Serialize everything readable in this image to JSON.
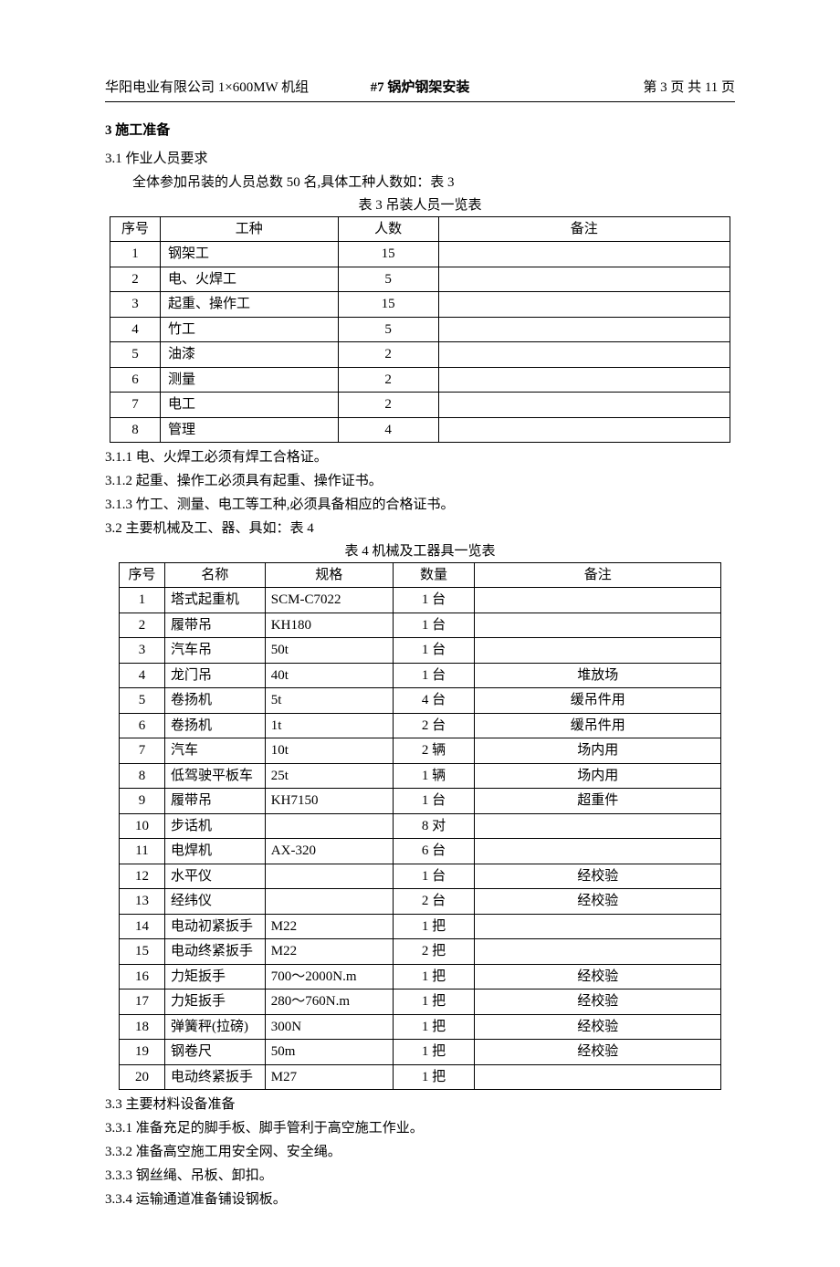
{
  "header": {
    "left": "华阳电业有限公司 1×600MW 机组",
    "center": "#7 锅炉钢架安装",
    "right": "第 3 页 共 11 页"
  },
  "section3": {
    "title": "3 施工准备",
    "p3_1": "3.1 作业人员要求",
    "p3_1_body": "全体参加吊装的人员总数 50 名,具体工种人数如：表 3",
    "table3_caption": "表 3 吊装人员一览表",
    "table3_headers": {
      "seq": "序号",
      "type": "工种",
      "num": "人数",
      "note": "备注"
    },
    "table3_rows": [
      {
        "seq": "1",
        "type": "钢架工",
        "num": "15",
        "note": ""
      },
      {
        "seq": "2",
        "type": "电、火焊工",
        "num": "5",
        "note": ""
      },
      {
        "seq": "3",
        "type": "起重、操作工",
        "num": "15",
        "note": ""
      },
      {
        "seq": "4",
        "type": "竹工",
        "num": "5",
        "note": ""
      },
      {
        "seq": "5",
        "type": "油漆",
        "num": "2",
        "note": ""
      },
      {
        "seq": "6",
        "type": "测量",
        "num": "2",
        "note": ""
      },
      {
        "seq": "7",
        "type": "电工",
        "num": "2",
        "note": ""
      },
      {
        "seq": "8",
        "type": "管理",
        "num": "4",
        "note": ""
      }
    ],
    "p3_1_1": "3.1.1 电、火焊工必须有焊工合格证。",
    "p3_1_2": "3.1.2 起重、操作工必须具有起重、操作证书。",
    "p3_1_3": "3.1.3 竹工、测量、电工等工种,必须具备相应的合格证书。",
    "p3_2": "3.2 主要机械及工、器、具如：表 4",
    "table4_caption": "表 4 机械及工器具一览表",
    "table4_headers": {
      "seq": "序号",
      "name": "名称",
      "spec": "规格",
      "qty": "数量",
      "note": "备注"
    },
    "table4_rows": [
      {
        "seq": "1",
        "name": "塔式起重机",
        "spec": "SCM-C7022",
        "qty": "1 台",
        "note": ""
      },
      {
        "seq": "2",
        "name": "履带吊",
        "spec": "KH180",
        "qty": "1 台",
        "note": ""
      },
      {
        "seq": "3",
        "name": "汽车吊",
        "spec": "50t",
        "qty": "1 台",
        "note": ""
      },
      {
        "seq": "4",
        "name": "龙门吊",
        "spec": "40t",
        "qty": "1 台",
        "note": "堆放场"
      },
      {
        "seq": "5",
        "name": "卷扬机",
        "spec": "5t",
        "qty": "4 台",
        "note": "缓吊件用"
      },
      {
        "seq": "6",
        "name": "卷扬机",
        "spec": "1t",
        "qty": "2 台",
        "note": "缓吊件用"
      },
      {
        "seq": "7",
        "name": "汽车",
        "spec": "10t",
        "qty": "2 辆",
        "note": "场内用"
      },
      {
        "seq": "8",
        "name": "低驾驶平板车",
        "spec": "25t",
        "qty": "1 辆",
        "note": "场内用"
      },
      {
        "seq": "9",
        "name": "履带吊",
        "spec": "KH7150",
        "qty": "1 台",
        "note": "超重件"
      },
      {
        "seq": "10",
        "name": "步话机",
        "spec": "",
        "qty": "8 对",
        "note": ""
      },
      {
        "seq": "11",
        "name": "电焊机",
        "spec": "AX-320",
        "qty": "6 台",
        "note": ""
      },
      {
        "seq": "12",
        "name": "水平仪",
        "spec": "",
        "qty": "1 台",
        "note": "经校验"
      },
      {
        "seq": "13",
        "name": "经纬仪",
        "spec": "",
        "qty": "2 台",
        "note": "经校验"
      },
      {
        "seq": "14",
        "name": "电动初紧扳手",
        "spec": "M22",
        "qty": "1 把",
        "note": ""
      },
      {
        "seq": "15",
        "name": "电动终紧扳手",
        "spec": "M22",
        "qty": "2 把",
        "note": ""
      },
      {
        "seq": "16",
        "name": "力矩扳手",
        "spec": "700～2000N.m",
        "qty": "1 把",
        "note": "经校验"
      },
      {
        "seq": "17",
        "name": "力矩扳手",
        "spec": "280～760N.m",
        "qty": "1 把",
        "note": "经校验"
      },
      {
        "seq": "18",
        "name": "弹簧秤(拉磅)",
        "spec": "300N",
        "qty": "1 把",
        "note": "经校验"
      },
      {
        "seq": "19",
        "name": "钢卷尺",
        "spec": "50m",
        "qty": "1 把",
        "note": "经校验"
      },
      {
        "seq": "20",
        "name": "电动终紧扳手",
        "spec": "M27",
        "qty": "1 把",
        "note": ""
      }
    ],
    "p3_3": "3.3 主要材料设备准备",
    "p3_3_1": "3.3.1 准备充足的脚手板、脚手管利于高空施工作业。",
    "p3_3_2": "3.3.2 准备高空施工用安全网、安全绳。",
    "p3_3_3": "3.3.3 钢丝绳、吊板、卸扣。",
    "p3_3_4": "3.3.4 运输通道准备铺设钢板。"
  }
}
